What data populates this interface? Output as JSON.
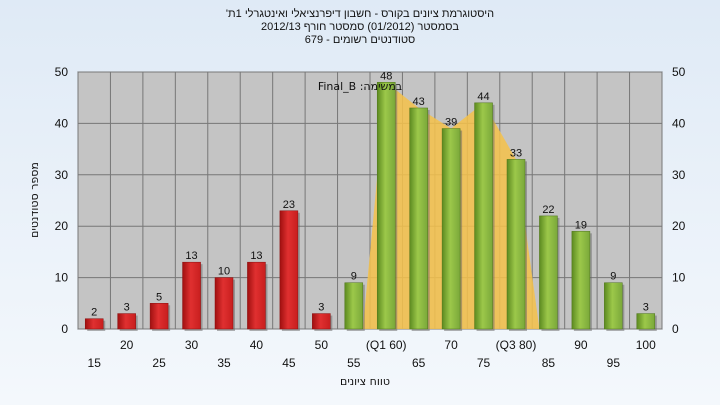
{
  "chart_data": {
    "type": "bar",
    "title_lines": [
      "'היסטוגרמת ציונים בקורס - חשבון דיפרנציאלי ואינטגרלי 1ת",
      "בסמסטר  (01/2012)  סמסטר חורף  2012/13",
      "679 - סטודנטים רשומים"
    ],
    "categories": [
      "15",
      "20",
      "25",
      "30",
      "35",
      "40",
      "45",
      "50",
      "55",
      "(Q1 60)",
      "65",
      "70",
      "75",
      "(Q3 80)",
      "85",
      "90",
      "95",
      "100"
    ],
    "values": [
      2,
      3,
      5,
      13,
      10,
      13,
      23,
      3,
      9,
      48,
      43,
      39,
      44,
      33,
      22,
      19,
      9,
      3
    ],
    "data_labels": [
      "2",
      "3",
      "5",
      "13",
      "10",
      "13",
      "23",
      "3",
      "9",
      "48",
      "43",
      "39",
      "44",
      "33",
      "22",
      "19",
      "9",
      "3"
    ],
    "fail_color": "#e03030",
    "pass_color": "#9cc84a",
    "fail_count": 8,
    "xlabel": "טווח ציונים",
    "ylabel": "מספר סטודנטים",
    "ylim": [
      0,
      50
    ],
    "yticks": [
      "0",
      "10",
      "20",
      "30",
      "40",
      "50"
    ],
    "grid": true,
    "annotation": "Final_B :במשימה",
    "shaded_region_color": "#f6c24a"
  }
}
